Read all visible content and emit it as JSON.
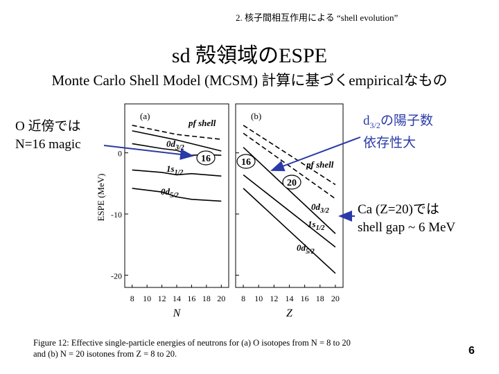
{
  "header": "2. 核子間相互作用による “shell evolution”",
  "title": "sd 殻領域のESPE",
  "subtitle": "Monte Carlo Shell Model (MCSM) 計算に基づくempiricalなもの",
  "left_note": {
    "line1": "O 近傍では",
    "line2": "N=16 magic"
  },
  "right_note1": {
    "prefix": "d",
    "sub": "3/2",
    "suffix": "の陽子数",
    "line2": "依存性大"
  },
  "right_note2": {
    "line1": "Ca (Z=20)では",
    "line2": "shell gap ~ 6 MeV"
  },
  "caption": {
    "line1": "Figure 12: Effective single-particle energies of neutrons for (a) O isotopes from N = 8 to 20",
    "line2": "and (b) N = 20 isotones from Z = 8 to 20."
  },
  "page_number": "6",
  "accent_color": "#2a3aa8",
  "chart_data": [
    {
      "type": "line",
      "panel_label": "(a)",
      "xlabel": "N",
      "ylabel": "ESPE (MeV)",
      "x_ticks": [
        "8",
        "10",
        "12",
        "14",
        "16",
        "18",
        "20"
      ],
      "y_ticks": [
        "0",
        "-10",
        "-20"
      ],
      "xlim": [
        7,
        21
      ],
      "ylim": [
        -22,
        8
      ],
      "series_labels": [
        "pf shell",
        "0d3/2",
        "1s1/2",
        "0d5/2"
      ],
      "magic_label": "16",
      "series": [
        {
          "name": "pf shell",
          "style": "dashed",
          "x": [
            8,
            14,
            20
          ],
          "values": [
            4.5,
            3.0,
            2.2
          ]
        },
        {
          "name": "pf shell",
          "style": "solid",
          "x": [
            8,
            14,
            20
          ],
          "values": [
            3.6,
            2.1,
            0.3
          ]
        },
        {
          "name": "0d3/2",
          "style": "solid",
          "x": [
            8,
            12,
            14,
            16,
            18,
            20
          ],
          "values": [
            1.5,
            0.7,
            0.4,
            -0.4,
            -0.3,
            -0.4
          ]
        },
        {
          "name": "1s1/2",
          "style": "solid",
          "x": [
            8,
            10,
            12,
            14,
            16,
            18,
            20
          ],
          "values": [
            -2.8,
            -3.0,
            -3.2,
            -3.6,
            -3.4,
            -3.6,
            -3.8
          ]
        },
        {
          "name": "0d5/2",
          "style": "solid",
          "x": [
            8,
            12,
            14,
            16,
            20
          ],
          "values": [
            -5.8,
            -6.4,
            -7.2,
            -7.6,
            -7.9
          ]
        }
      ]
    },
    {
      "type": "line",
      "panel_label": "(b)",
      "xlabel": "Z",
      "ylabel": "",
      "x_ticks": [
        "8",
        "10",
        "12",
        "14",
        "16",
        "18",
        "20"
      ],
      "y_ticks": [
        "0",
        "-10",
        "-20"
      ],
      "xlim": [
        7,
        21
      ],
      "ylim": [
        -22,
        8
      ],
      "series_labels": [
        "pf shell",
        "0d3/2",
        "1s1/2",
        "0d5/2"
      ],
      "magic_labels": [
        "16",
        "20"
      ],
      "series": [
        {
          "name": "pf shell",
          "style": "dashed",
          "x": [
            8,
            20
          ],
          "values": [
            4.5,
            -5.2
          ]
        },
        {
          "name": "pf shell",
          "style": "dashed",
          "x": [
            8,
            20
          ],
          "values": [
            3.2,
            -7.5
          ]
        },
        {
          "name": "0d3/2",
          "style": "solid",
          "x": [
            8,
            20
          ],
          "values": [
            0.9,
            -13.2
          ]
        },
        {
          "name": "1s1/2",
          "style": "solid",
          "x": [
            8,
            20
          ],
          "values": [
            -3.6,
            -15.4
          ]
        },
        {
          "name": "0d5/2",
          "style": "solid",
          "x": [
            8,
            20
          ],
          "values": [
            -5.8,
            -19.7
          ]
        }
      ]
    }
  ]
}
